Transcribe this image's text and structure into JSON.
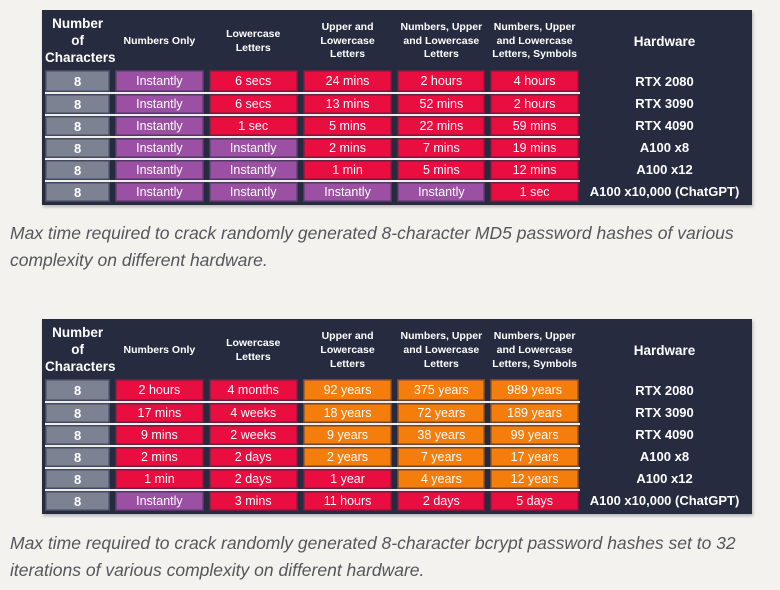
{
  "colors": {
    "navy": "#262b40",
    "gray": "#7d8292",
    "red": "#e90d40",
    "purple": "#9c50a4",
    "orange": "#f57d0b",
    "page_bg": "#f3f2ef",
    "row_divider": "#efeeec",
    "caption_text": "#55565a"
  },
  "chart_data": [
    {
      "type": "table",
      "name": "md5-crack-times",
      "caption": "Max time required to crack randomly generated 8-character MD5 password hashes of various complexity on different hardware.",
      "columns": [
        "Number of Characters",
        "Numbers Only",
        "Lowercase Letters",
        "Upper and Lowercase Letters",
        "Numbers, Upper and Lowercase Letters",
        "Numbers, Upper and Lowercase Letters, Symbols",
        "Hardware"
      ],
      "rows": [
        {
          "chars": "8",
          "times": [
            {
              "t": "Instantly",
              "c": "purple"
            },
            {
              "t": "6 secs",
              "c": "red"
            },
            {
              "t": "24 mins",
              "c": "red"
            },
            {
              "t": "2 hours",
              "c": "red"
            },
            {
              "t": "4 hours",
              "c": "red"
            }
          ],
          "hardware": "RTX 2080"
        },
        {
          "chars": "8",
          "times": [
            {
              "t": "Instantly",
              "c": "purple"
            },
            {
              "t": "6 secs",
              "c": "red"
            },
            {
              "t": "13 mins",
              "c": "red"
            },
            {
              "t": "52 mins",
              "c": "red"
            },
            {
              "t": "2 hours",
              "c": "red"
            }
          ],
          "hardware": "RTX 3090"
        },
        {
          "chars": "8",
          "times": [
            {
              "t": "Instantly",
              "c": "purple"
            },
            {
              "t": "1 sec",
              "c": "red"
            },
            {
              "t": "5 mins",
              "c": "red"
            },
            {
              "t": "22 mins",
              "c": "red"
            },
            {
              "t": "59 mins",
              "c": "red"
            }
          ],
          "hardware": "RTX 4090"
        },
        {
          "chars": "8",
          "times": [
            {
              "t": "Instantly",
              "c": "purple"
            },
            {
              "t": "Instantly",
              "c": "purple"
            },
            {
              "t": "2 mins",
              "c": "red"
            },
            {
              "t": "7 mins",
              "c": "red"
            },
            {
              "t": "19 mins",
              "c": "red"
            }
          ],
          "hardware": "A100 x8"
        },
        {
          "chars": "8",
          "times": [
            {
              "t": "Instantly",
              "c": "purple"
            },
            {
              "t": "Instantly",
              "c": "purple"
            },
            {
              "t": "1 min",
              "c": "red"
            },
            {
              "t": "5 mins",
              "c": "red"
            },
            {
              "t": "12 mins",
              "c": "red"
            }
          ],
          "hardware": "A100 x12"
        },
        {
          "chars": "8",
          "times": [
            {
              "t": "Instantly",
              "c": "purple"
            },
            {
              "t": "Instantly",
              "c": "purple"
            },
            {
              "t": "Instantly",
              "c": "purple"
            },
            {
              "t": "Instantly",
              "c": "purple"
            },
            {
              "t": "1 sec",
              "c": "red"
            }
          ],
          "hardware": "A100 x10,000 (ChatGPT)"
        }
      ]
    },
    {
      "type": "table",
      "name": "bcrypt-crack-times",
      "caption": "Max time required to crack randomly generated 8-character bcrypt password hashes set to 32 iterations of various complexity on different hardware.",
      "columns": [
        "Number of Characters",
        "Numbers Only",
        "Lowercase Letters",
        "Upper and Lowercase Letters",
        "Numbers, Upper and Lowercase Letters",
        "Numbers, Upper and Lowercase Letters, Symbols",
        "Hardware"
      ],
      "rows": [
        {
          "chars": "8",
          "times": [
            {
              "t": "2 hours",
              "c": "red"
            },
            {
              "t": "4 months",
              "c": "red"
            },
            {
              "t": "92 years",
              "c": "orange"
            },
            {
              "t": "375 years",
              "c": "orange"
            },
            {
              "t": "989 years",
              "c": "orange"
            }
          ],
          "hardware": "RTX 2080"
        },
        {
          "chars": "8",
          "times": [
            {
              "t": "17 mins",
              "c": "red"
            },
            {
              "t": "4 weeks",
              "c": "red"
            },
            {
              "t": "18 years",
              "c": "orange"
            },
            {
              "t": "72 years",
              "c": "orange"
            },
            {
              "t": "189 years",
              "c": "orange"
            }
          ],
          "hardware": "RTX 3090"
        },
        {
          "chars": "8",
          "times": [
            {
              "t": "9 mins",
              "c": "red"
            },
            {
              "t": "2 weeks",
              "c": "red"
            },
            {
              "t": "9 years",
              "c": "orange"
            },
            {
              "t": "38 years",
              "c": "orange"
            },
            {
              "t": "99 years",
              "c": "orange"
            }
          ],
          "hardware": "RTX 4090"
        },
        {
          "chars": "8",
          "times": [
            {
              "t": "2 mins",
              "c": "red"
            },
            {
              "t": "2 days",
              "c": "red"
            },
            {
              "t": "2 years",
              "c": "orange"
            },
            {
              "t": "7 years",
              "c": "orange"
            },
            {
              "t": "17 years",
              "c": "orange"
            }
          ],
          "hardware": "A100 x8"
        },
        {
          "chars": "8",
          "times": [
            {
              "t": "1 min",
              "c": "red"
            },
            {
              "t": "2 days",
              "c": "red"
            },
            {
              "t": "1 year",
              "c": "red"
            },
            {
              "t": "4 years",
              "c": "orange"
            },
            {
              "t": "12 years",
              "c": "orange"
            }
          ],
          "hardware": "A100 x12"
        },
        {
          "chars": "8",
          "times": [
            {
              "t": "Instantly",
              "c": "purple"
            },
            {
              "t": "3 mins",
              "c": "red"
            },
            {
              "t": "11 hours",
              "c": "red"
            },
            {
              "t": "2 days",
              "c": "red"
            },
            {
              "t": "5 days",
              "c": "red"
            }
          ],
          "hardware": "A100 x10,000 (ChatGPT)"
        }
      ]
    }
  ]
}
